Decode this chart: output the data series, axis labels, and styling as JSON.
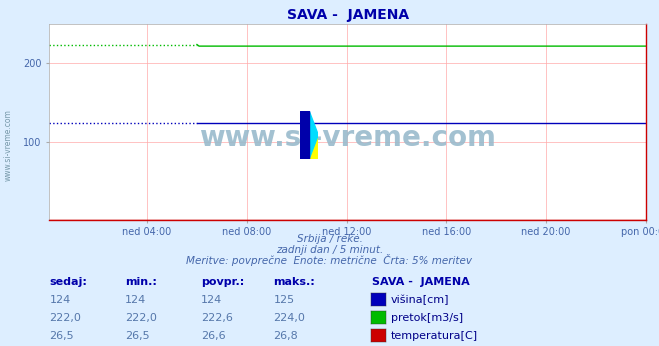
{
  "title": "SAVA -  JAMENA",
  "subtitle1": "Srbija / reke.",
  "subtitle2": "zadnji dan / 5 minut.",
  "subtitle3": "Meritve: povprečne  Enote: metrične  Črta: 5% meritev",
  "watermark": "www.si-vreme.com",
  "xlabel_ticks": [
    "ned 04:00",
    "ned 08:00",
    "ned 12:00",
    "ned 16:00",
    "ned 20:00",
    "pon 00:00"
  ],
  "ylim": [
    0,
    250
  ],
  "n_points": 288,
  "visina_value": 124,
  "pretok_main": 222.0,
  "pretok_dotted": 224.0,
  "visina_color": "#0000bb",
  "pretok_color": "#00bb00",
  "temperatura_color": "#cc0000",
  "grid_color": "#ffaaaa",
  "bg_color": "#ddeeff",
  "plot_bg_color": "#ffffff",
  "title_color": "#0000aa",
  "text_color": "#4466aa",
  "label_color": "#000088",
  "table_header_color": "#0000aa",
  "table_value_color": "#5577aa",
  "watermark_color": "#99bbcc",
  "dotted_until": 72,
  "legend_items": [
    {
      "label": "višina[cm]",
      "color": "#0000bb"
    },
    {
      "label": "pretok[m3/s]",
      "color": "#00bb00"
    },
    {
      "label": "temperatura[C]",
      "color": "#cc0000"
    }
  ],
  "table_headers": [
    "sedaj:",
    "min.:",
    "povpr.:",
    "maks.:"
  ],
  "table_data": [
    [
      "124",
      "124",
      "124",
      "125"
    ],
    [
      "222,0",
      "222,0",
      "222,6",
      "224,0"
    ],
    [
      "26,5",
      "26,5",
      "26,6",
      "26,8"
    ]
  ],
  "sava_label": "SAVA -  JAMENA"
}
